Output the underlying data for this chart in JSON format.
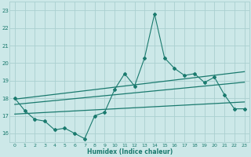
{
  "xlabel": "Humidex (Indice chaleur)",
  "background_color": "#cce8e8",
  "grid_color": "#aad0d0",
  "line_color": "#1a7a6e",
  "xlim": [
    -0.5,
    23.5
  ],
  "ylim": [
    15.5,
    23.5
  ],
  "x_ticks": [
    0,
    1,
    2,
    3,
    4,
    5,
    6,
    7,
    8,
    9,
    10,
    11,
    12,
    13,
    14,
    15,
    16,
    17,
    18,
    19,
    20,
    21,
    22,
    23
  ],
  "y_ticks": [
    16,
    17,
    18,
    19,
    20,
    21,
    22,
    23
  ],
  "data_x": [
    0,
    1,
    2,
    3,
    4,
    5,
    6,
    7,
    8,
    9,
    10,
    11,
    12,
    13,
    14,
    15,
    16,
    17,
    18,
    19,
    20,
    21,
    22,
    23
  ],
  "data_y": [
    18.0,
    17.3,
    16.8,
    16.7,
    16.2,
    16.3,
    16.0,
    15.7,
    17.0,
    17.2,
    18.5,
    19.4,
    18.7,
    20.3,
    22.8,
    20.3,
    19.7,
    19.3,
    19.4,
    18.9,
    19.2,
    18.2,
    17.4,
    17.4
  ],
  "reg_lines": [
    {
      "slope": 0.068,
      "intercept": 17.95
    },
    {
      "slope": 0.055,
      "intercept": 17.65
    },
    {
      "slope": 0.03,
      "intercept": 17.1
    }
  ]
}
